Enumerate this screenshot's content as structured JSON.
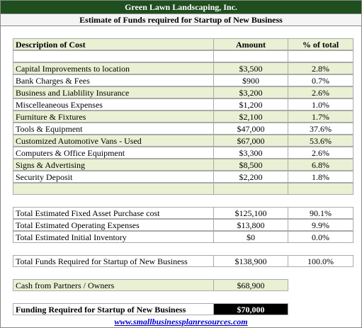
{
  "header": {
    "company": "Green Lawn Landscaping, Inc.",
    "subtitle": "Estimate of Funds required for Startup of New Business"
  },
  "table": {
    "columns": [
      "Description of Cost",
      "Amount",
      "% of total"
    ],
    "rows": [
      [
        "Capital Improvements to location",
        "$3,500",
        "2.8%"
      ],
      [
        "Bank Charges & Fees",
        "$900",
        "0.7%"
      ],
      [
        "Business and Liablility Insurance",
        "$3,200",
        "2.6%"
      ],
      [
        "Miscelleaneous Expenses",
        "$1,200",
        "1.0%"
      ],
      [
        "Furniture & Fixtures",
        "$2,100",
        "1.7%"
      ],
      [
        "Tools & Equipment",
        "$47,000",
        "37.6%"
      ],
      [
        "Customized Automotive Vans - Used",
        "$67,000",
        "53.6%"
      ],
      [
        "Computers & Office Equipment",
        "$3,300",
        "2.6%"
      ],
      [
        "Signs & Advertising",
        "$8,500",
        "6.8%"
      ],
      [
        "Security Deposit",
        "$2,200",
        "1.8%"
      ]
    ]
  },
  "totals": [
    [
      "Total Estimated Fixed Asset Purchase cost",
      "$125,100",
      "90.1%"
    ],
    [
      "Total Estimated Operating Expenses",
      "$13,800",
      "9.9%"
    ],
    [
      "Total Estimated Initial Inventory",
      "$0",
      "0.0%"
    ]
  ],
  "grand_total": [
    "Total Funds Required for Startup of New Business",
    "$138,900",
    "100.0%"
  ],
  "cash": [
    "Cash from Partners / Owners",
    "$68,900"
  ],
  "funding": [
    "Funding Required for Startup of New Business",
    "$70,000"
  ],
  "footer_link": "www.smallbusinessplanresources.com"
}
